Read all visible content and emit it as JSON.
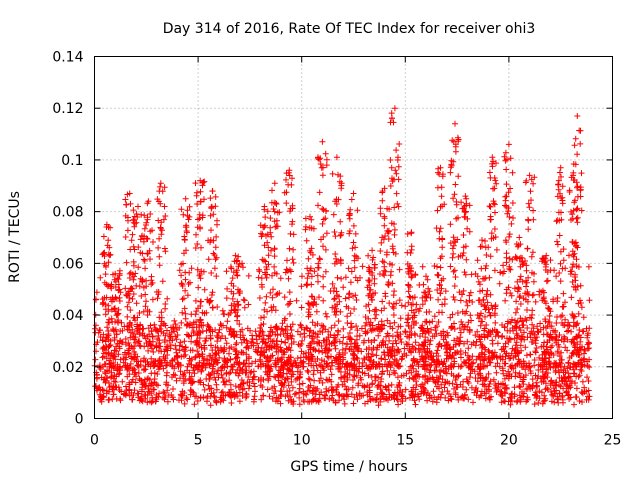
{
  "chart_data": {
    "type": "scatter",
    "title": "Day 314 of 2016, Rate Of TEC Index for receiver ohi3",
    "xlabel": "GPS time / hours",
    "ylabel": "ROTI / TECUs",
    "xlim": [
      0,
      25
    ],
    "ylim": [
      0,
      0.14
    ],
    "xticks": [
      0,
      5,
      10,
      15,
      20,
      25
    ],
    "yticks": [
      0,
      0.02,
      0.04,
      0.06,
      0.08,
      0.1,
      0.12,
      0.14
    ],
    "xtick_labels": [
      "0",
      "5",
      "10",
      "15",
      "20",
      "25"
    ],
    "ytick_labels": [
      "0",
      "0.02",
      "0.04",
      "0.06",
      "0.08",
      "0.1",
      "0.12",
      "0.14"
    ],
    "grid": true,
    "marker": "+",
    "color": "#ff0000",
    "series": [
      {
        "name": "ROTI",
        "x_range": [
          0,
          23.9
        ],
        "baseline_range": [
          0.005,
          0.035
        ],
        "peaks": [
          {
            "x": 0.6,
            "y": 0.075
          },
          {
            "x": 1.0,
            "y": 0.056
          },
          {
            "x": 1.7,
            "y": 0.087
          },
          {
            "x": 2.1,
            "y": 0.082
          },
          {
            "x": 2.6,
            "y": 0.084
          },
          {
            "x": 3.2,
            "y": 0.091
          },
          {
            "x": 4.4,
            "y": 0.085
          },
          {
            "x": 5.1,
            "y": 0.092
          },
          {
            "x": 5.7,
            "y": 0.088
          },
          {
            "x": 6.8,
            "y": 0.063
          },
          {
            "x": 8.2,
            "y": 0.082
          },
          {
            "x": 8.7,
            "y": 0.091
          },
          {
            "x": 9.4,
            "y": 0.096
          },
          {
            "x": 10.4,
            "y": 0.078
          },
          {
            "x": 11.0,
            "y": 0.107
          },
          {
            "x": 11.7,
            "y": 0.101
          },
          {
            "x": 12.5,
            "y": 0.087
          },
          {
            "x": 13.4,
            "y": 0.065
          },
          {
            "x": 14.0,
            "y": 0.089
          },
          {
            "x": 14.5,
            "y": 0.12
          },
          {
            "x": 15.3,
            "y": 0.072
          },
          {
            "x": 16.0,
            "y": 0.055
          },
          {
            "x": 16.7,
            "y": 0.097
          },
          {
            "x": 17.4,
            "y": 0.114
          },
          {
            "x": 17.9,
            "y": 0.086
          },
          {
            "x": 18.7,
            "y": 0.069
          },
          {
            "x": 19.2,
            "y": 0.101
          },
          {
            "x": 20.0,
            "y": 0.106
          },
          {
            "x": 20.5,
            "y": 0.07
          },
          {
            "x": 21.0,
            "y": 0.094
          },
          {
            "x": 21.8,
            "y": 0.063
          },
          {
            "x": 22.5,
            "y": 0.097
          },
          {
            "x": 23.1,
            "y": 0.094
          },
          {
            "x": 23.3,
            "y": 0.117
          }
        ]
      }
    ]
  }
}
